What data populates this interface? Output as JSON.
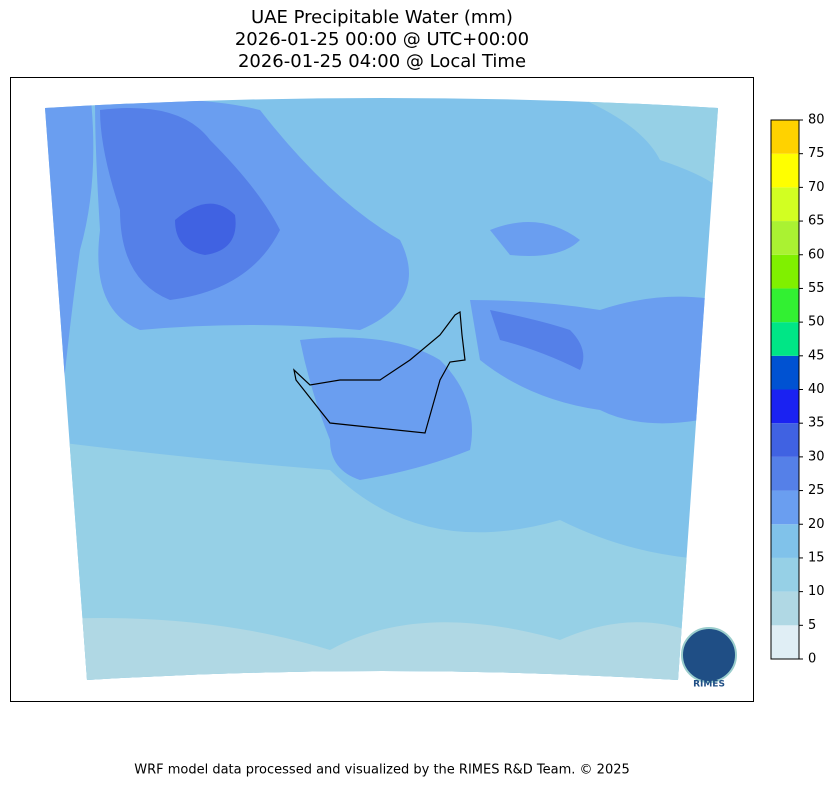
{
  "title_lines": [
    "UAE Precipitable Water (mm)",
    "2026-01-25 00:00 @ UTC+00:00",
    "2026-01-25 04:00 @ Local Time"
  ],
  "colorbar": {
    "ticks": [
      0,
      5,
      10,
      15,
      20,
      25,
      30,
      35,
      40,
      45,
      50,
      55,
      60,
      65,
      70,
      75,
      80
    ],
    "colors": [
      "#e0eef5",
      "#b0d8e4",
      "#96d0e6",
      "#80c2ea",
      "#6a9ef0",
      "#5580e8",
      "#4062e2",
      "#1a22f2",
      "#0052d2",
      "#00e686",
      "#32f032",
      "#80f000",
      "#aaf232",
      "#d2ff22",
      "#ffff00",
      "#ffd200"
    ]
  },
  "logo": {
    "label": "RIMES"
  },
  "footer": "WRF model data processed and visualized by the RIMES R&D Team. © 2025"
}
